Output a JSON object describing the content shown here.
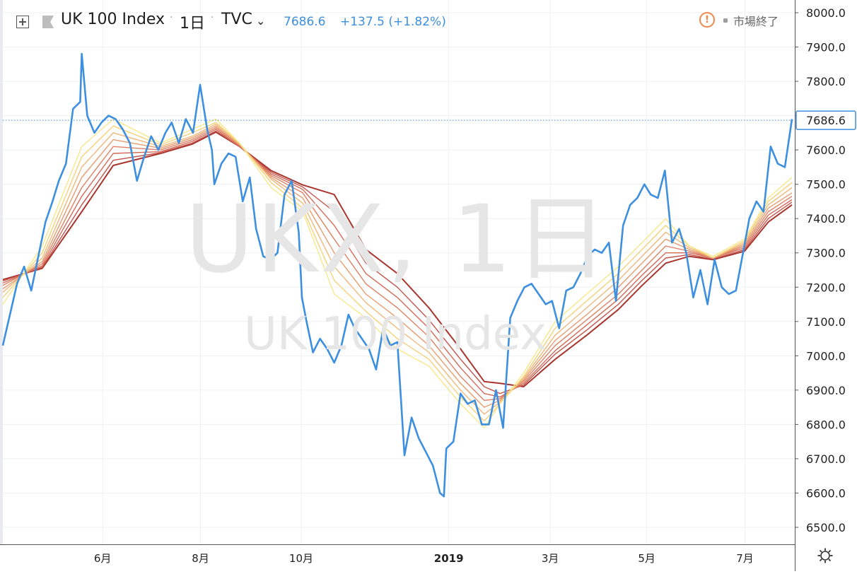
{
  "header": {
    "symbol": "UK 100 Index",
    "interval": "1日",
    "source": "TVC",
    "last_price": "7686.6",
    "change": "+137.5 (+1.82%)",
    "market_status": "市場終了",
    "icons": [
      "add-symbol-icon",
      "flag-icon",
      "chevron-down-icon",
      "alert-icon",
      "gear-icon"
    ]
  },
  "watermark": {
    "line1": "UKX, 1日",
    "line2": "UK 100 Index"
  },
  "colors": {
    "price_line": "#3d8fe0",
    "ribbon": [
      "#f7e88a",
      "#f5d27a",
      "#f0b87a",
      "#e89c6e",
      "#df8263",
      "#d46a57",
      "#c4534a",
      "#a8362e"
    ],
    "last_price_tag_border": "#3d8fe0"
  },
  "chart_data": {
    "type": "line",
    "title": "UK 100 Index",
    "ylim": [
      6450,
      8000
    ],
    "y_ticks": [
      "8000.0",
      "7900.0",
      "7800.0",
      "7700.0",
      "7600.0",
      "7500.0",
      "7400.0",
      "7300.0",
      "7200.0",
      "7100.0",
      "7000.0",
      "6900.0",
      "6800.0",
      "6700.0",
      "6600.0",
      "6500.0"
    ],
    "x_ticks": [
      {
        "label": "6月",
        "t": 0.1265
      },
      {
        "label": "8月",
        "t": 0.2505
      },
      {
        "label": "10月",
        "t": 0.3781
      },
      {
        "label": "2019",
        "t": 0.5651
      },
      {
        "label": "3月",
        "t": 0.6937
      },
      {
        "label": "5月",
        "t": 0.816
      },
      {
        "label": "7月",
        "t": 0.9404
      }
    ],
    "grid": true,
    "last_value": "7686.6",
    "series": [
      {
        "role": "price",
        "x": [
          0.0,
          0.018,
          0.027,
          0.036,
          0.045,
          0.054,
          0.063,
          0.071,
          0.08,
          0.089,
          0.098,
          0.1,
          0.107,
          0.116,
          0.125,
          0.134,
          0.143,
          0.152,
          0.161,
          0.17,
          0.179,
          0.188,
          0.197,
          0.206,
          0.214,
          0.223,
          0.232,
          0.241,
          0.25,
          0.259,
          0.265,
          0.268,
          0.277,
          0.286,
          0.295,
          0.304,
          0.313,
          0.321,
          0.33,
          0.339,
          0.348,
          0.357,
          0.366,
          0.375,
          0.379,
          0.384,
          0.393,
          0.402,
          0.411,
          0.42,
          0.429,
          0.438,
          0.446,
          0.455,
          0.464,
          0.473,
          0.482,
          0.491,
          0.5,
          0.509,
          0.518,
          0.527,
          0.536,
          0.545,
          0.554,
          0.559,
          0.562,
          0.571,
          0.58,
          0.589,
          0.598,
          0.607,
          0.616,
          0.625,
          0.634,
          0.643,
          0.652,
          0.661,
          0.67,
          0.679,
          0.688,
          0.696,
          0.705,
          0.714,
          0.723,
          0.732,
          0.741,
          0.75,
          0.759,
          0.768,
          0.777,
          0.786,
          0.795,
          0.804,
          0.813,
          0.821,
          0.83,
          0.839,
          0.848,
          0.857,
          0.866,
          0.875,
          0.884,
          0.893,
          0.902,
          0.911,
          0.92,
          0.929,
          0.938,
          0.946,
          0.955,
          0.964,
          0.973,
          0.982,
          0.991,
          1.0
        ],
        "y": [
          7030,
          7210,
          7260,
          7190,
          7290,
          7390,
          7450,
          7510,
          7560,
          7720,
          7740,
          7880,
          7700,
          7650,
          7680,
          7700,
          7690,
          7660,
          7620,
          7510,
          7580,
          7640,
          7600,
          7650,
          7680,
          7620,
          7690,
          7650,
          7790,
          7660,
          7600,
          7500,
          7560,
          7590,
          7580,
          7450,
          7520,
          7370,
          7290,
          7280,
          7300,
          7470,
          7510,
          7360,
          7170,
          7110,
          7010,
          7050,
          7020,
          6980,
          7030,
          7120,
          7080,
          7050,
          7020,
          6960,
          7080,
          7030,
          7040,
          6710,
          6820,
          6760,
          6720,
          6680,
          6600,
          6590,
          6730,
          6750,
          6890,
          6860,
          6870,
          6800,
          6800,
          6900,
          6790,
          7110,
          7160,
          7200,
          7210,
          7180,
          7150,
          7160,
          7080,
          7190,
          7200,
          7240,
          7290,
          7310,
          7300,
          7330,
          7160,
          7380,
          7440,
          7460,
          7500,
          7470,
          7460,
          7540,
          7330,
          7370,
          7300,
          7170,
          7250,
          7150,
          7280,
          7200,
          7180,
          7190,
          7300,
          7400,
          7450,
          7420,
          7610,
          7560,
          7550,
          7690
        ]
      },
      {
        "role": "ema",
        "x": [
          0.0,
          0.05,
          0.1,
          0.14,
          0.2,
          0.24,
          0.27,
          0.3,
          0.34,
          0.38,
          0.42,
          0.46,
          0.5,
          0.54,
          0.58,
          0.61,
          0.63,
          0.66,
          0.7,
          0.74,
          0.78,
          0.81,
          0.84,
          0.87,
          0.9,
          0.94,
          0.97,
          1.0
        ],
        "y": [
          7150,
          7320,
          7610,
          7690,
          7620,
          7660,
          7690,
          7620,
          7490,
          7420,
          7180,
          7110,
          7020,
          6970,
          6860,
          6790,
          6860,
          6950,
          7100,
          7180,
          7260,
          7330,
          7400,
          7320,
          7290,
          7340,
          7460,
          7520
        ]
      },
      {
        "role": "ema",
        "x": [
          0.0,
          0.05,
          0.1,
          0.14,
          0.2,
          0.24,
          0.27,
          0.3,
          0.34,
          0.38,
          0.42,
          0.46,
          0.5,
          0.54,
          0.58,
          0.61,
          0.63,
          0.66,
          0.7,
          0.74,
          0.78,
          0.81,
          0.84,
          0.87,
          0.9,
          0.94,
          0.97,
          1.0
        ],
        "y": [
          7170,
          7300,
          7580,
          7670,
          7615,
          7650,
          7680,
          7620,
          7505,
          7430,
          7220,
          7130,
          7050,
          6990,
          6880,
          6810,
          6860,
          6940,
          7080,
          7160,
          7240,
          7310,
          7380,
          7320,
          7285,
          7335,
          7450,
          7505
        ]
      },
      {
        "role": "ema",
        "x": [
          0.0,
          0.05,
          0.1,
          0.14,
          0.2,
          0.24,
          0.27,
          0.3,
          0.34,
          0.38,
          0.42,
          0.46,
          0.5,
          0.54,
          0.58,
          0.61,
          0.63,
          0.66,
          0.7,
          0.74,
          0.78,
          0.81,
          0.84,
          0.87,
          0.9,
          0.94,
          0.97,
          1.0
        ],
        "y": [
          7185,
          7285,
          7550,
          7650,
          7610,
          7640,
          7675,
          7618,
          7515,
          7445,
          7260,
          7155,
          7080,
          7010,
          6900,
          6830,
          6865,
          6935,
          7060,
          7140,
          7220,
          7290,
          7360,
          7315,
          7285,
          7330,
          7440,
          7490
        ]
      },
      {
        "role": "ema",
        "x": [
          0.0,
          0.05,
          0.1,
          0.14,
          0.2,
          0.24,
          0.27,
          0.3,
          0.34,
          0.38,
          0.42,
          0.46,
          0.5,
          0.54,
          0.58,
          0.61,
          0.63,
          0.66,
          0.7,
          0.74,
          0.78,
          0.81,
          0.84,
          0.87,
          0.9,
          0.94,
          0.97,
          1.0
        ],
        "y": [
          7195,
          7275,
          7520,
          7630,
          7605,
          7635,
          7670,
          7615,
          7520,
          7460,
          7300,
          7180,
          7110,
          7030,
          6920,
          6850,
          6870,
          6930,
          7045,
          7120,
          7200,
          7270,
          7340,
          7310,
          7285,
          7325,
          7430,
          7475
        ]
      },
      {
        "role": "ema",
        "x": [
          0.0,
          0.05,
          0.1,
          0.14,
          0.2,
          0.24,
          0.27,
          0.3,
          0.34,
          0.38,
          0.42,
          0.46,
          0.5,
          0.54,
          0.58,
          0.61,
          0.63,
          0.66,
          0.7,
          0.74,
          0.78,
          0.81,
          0.84,
          0.87,
          0.9,
          0.94,
          0.97,
          1.0
        ],
        "y": [
          7205,
          7268,
          7490,
          7610,
          7600,
          7630,
          7665,
          7613,
          7525,
          7475,
          7340,
          7210,
          7140,
          7055,
          6940,
          6870,
          6875,
          6925,
          7030,
          7105,
          7180,
          7250,
          7320,
          7305,
          7285,
          7320,
          7420,
          7465
        ]
      },
      {
        "role": "ema",
        "x": [
          0.0,
          0.05,
          0.1,
          0.14,
          0.2,
          0.24,
          0.27,
          0.3,
          0.34,
          0.38,
          0.42,
          0.46,
          0.5,
          0.54,
          0.58,
          0.61,
          0.63,
          0.66,
          0.7,
          0.74,
          0.78,
          0.81,
          0.84,
          0.87,
          0.9,
          0.94,
          0.97,
          1.0
        ],
        "y": [
          7212,
          7262,
          7465,
          7590,
          7595,
          7625,
          7660,
          7610,
          7530,
          7485,
          7380,
          7240,
          7170,
          7080,
          6965,
          6890,
          6880,
          6920,
          7015,
          7090,
          7165,
          7235,
          7300,
          7300,
          7285,
          7315,
          7410,
          7455
        ]
      },
      {
        "role": "ema",
        "x": [
          0.0,
          0.05,
          0.1,
          0.14,
          0.2,
          0.24,
          0.27,
          0.3,
          0.34,
          0.38,
          0.42,
          0.46,
          0.5,
          0.54,
          0.58,
          0.61,
          0.63,
          0.66,
          0.7,
          0.74,
          0.78,
          0.81,
          0.84,
          0.87,
          0.9,
          0.94,
          0.97,
          1.0
        ],
        "y": [
          7218,
          7258,
          7440,
          7570,
          7592,
          7620,
          7655,
          7610,
          7535,
          7492,
          7420,
          7270,
          7200,
          7105,
          6990,
          6910,
          6890,
          6915,
          7005,
          7075,
          7150,
          7220,
          7285,
          7295,
          7282,
          7310,
          7400,
          7448
        ]
      },
      {
        "role": "ema",
        "x": [
          0.0,
          0.05,
          0.1,
          0.14,
          0.2,
          0.24,
          0.27,
          0.3,
          0.34,
          0.38,
          0.42,
          0.46,
          0.5,
          0.54,
          0.58,
          0.61,
          0.63,
          0.66,
          0.7,
          0.74,
          0.78,
          0.81,
          0.84,
          0.87,
          0.9,
          0.94,
          0.97,
          1.0
        ],
        "y": [
          7222,
          7255,
          7420,
          7555,
          7590,
          7617,
          7652,
          7610,
          7540,
          7498,
          7470,
          7310,
          7240,
          7140,
          7020,
          6925,
          6920,
          6910,
          6990,
          7060,
          7135,
          7205,
          7270,
          7290,
          7280,
          7305,
          7390,
          7440
        ]
      }
    ]
  }
}
